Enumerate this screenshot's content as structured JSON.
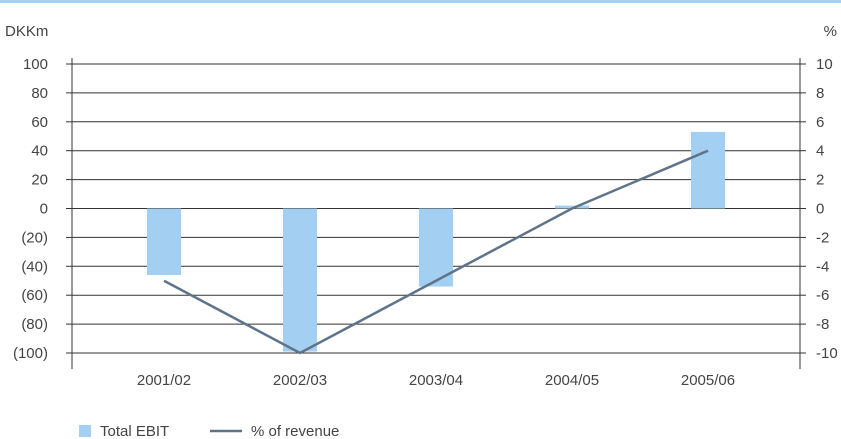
{
  "chart_data": {
    "type": "bar",
    "categories": [
      "2001/02",
      "2002/03",
      "2003/04",
      "2004/05",
      "2005/06"
    ],
    "series": [
      {
        "name": "Total EBIT",
        "type": "bar",
        "axis": "left",
        "values": [
          -46,
          -99,
          -54,
          2,
          53
        ]
      },
      {
        "name": "% of revenue",
        "type": "line",
        "axis": "right",
        "values": [
          -5,
          -10,
          -5,
          0,
          4
        ]
      }
    ],
    "left_axis": {
      "unit": "DKKm",
      "ylim": [
        -100,
        100
      ],
      "ticks": [
        100,
        80,
        60,
        40,
        20,
        0,
        -20,
        -40,
        -60,
        -80,
        -100
      ],
      "tick_labels": [
        "100",
        "80",
        "60",
        "40",
        "20",
        "0",
        "(20)",
        "(40)",
        "(60)",
        "(80)",
        "(100)"
      ]
    },
    "right_axis": {
      "unit": "%",
      "ylim": [
        -10,
        10
      ],
      "ticks": [
        10,
        8,
        6,
        4,
        2,
        0,
        -2,
        -4,
        -6,
        -8,
        -10
      ],
      "tick_labels": [
        "10",
        "8",
        "6",
        "4",
        "2",
        "0",
        "-2",
        "-4",
        "-6",
        "-8",
        "-10"
      ]
    },
    "grid": true,
    "legend": {
      "placement": "bottom-left",
      "entries": [
        "Total EBIT",
        "% of revenue"
      ]
    },
    "colors": {
      "bar": "#a3cff2",
      "line": "#5f7489",
      "top_rule": "#a3cff2",
      "grid": "#333333"
    }
  }
}
